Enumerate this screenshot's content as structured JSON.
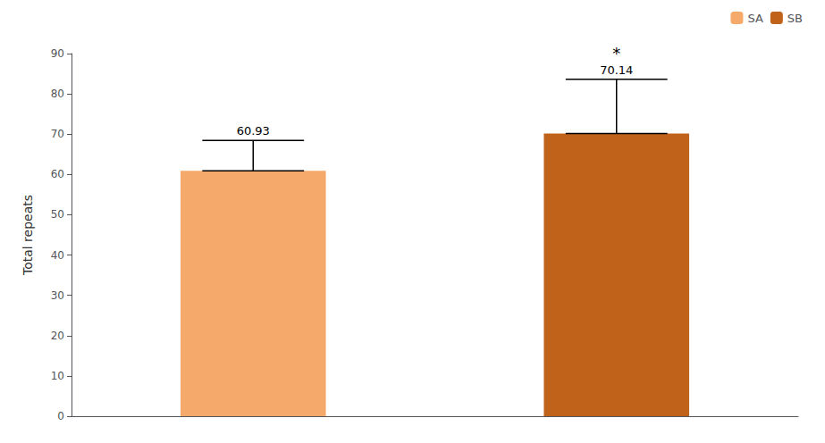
{
  "chart_data": {
    "type": "bar",
    "categories": [
      "SA",
      "SB"
    ],
    "values": [
      60.93,
      70.14
    ],
    "errors_up": [
      7.5,
      13.5
    ],
    "colors": [
      "#F5A96A",
      "#C0621A"
    ],
    "ylabel": "Total repeats",
    "ylim": [
      0,
      90
    ],
    "yticks": [
      0,
      10,
      20,
      30,
      40,
      50,
      60,
      70,
      80,
      90
    ],
    "data_labels": true,
    "annotations": [
      {
        "text": "*",
        "category": "SB"
      }
    ],
    "legend": "upper right",
    "tick_labels": "y",
    "grid": false
  }
}
